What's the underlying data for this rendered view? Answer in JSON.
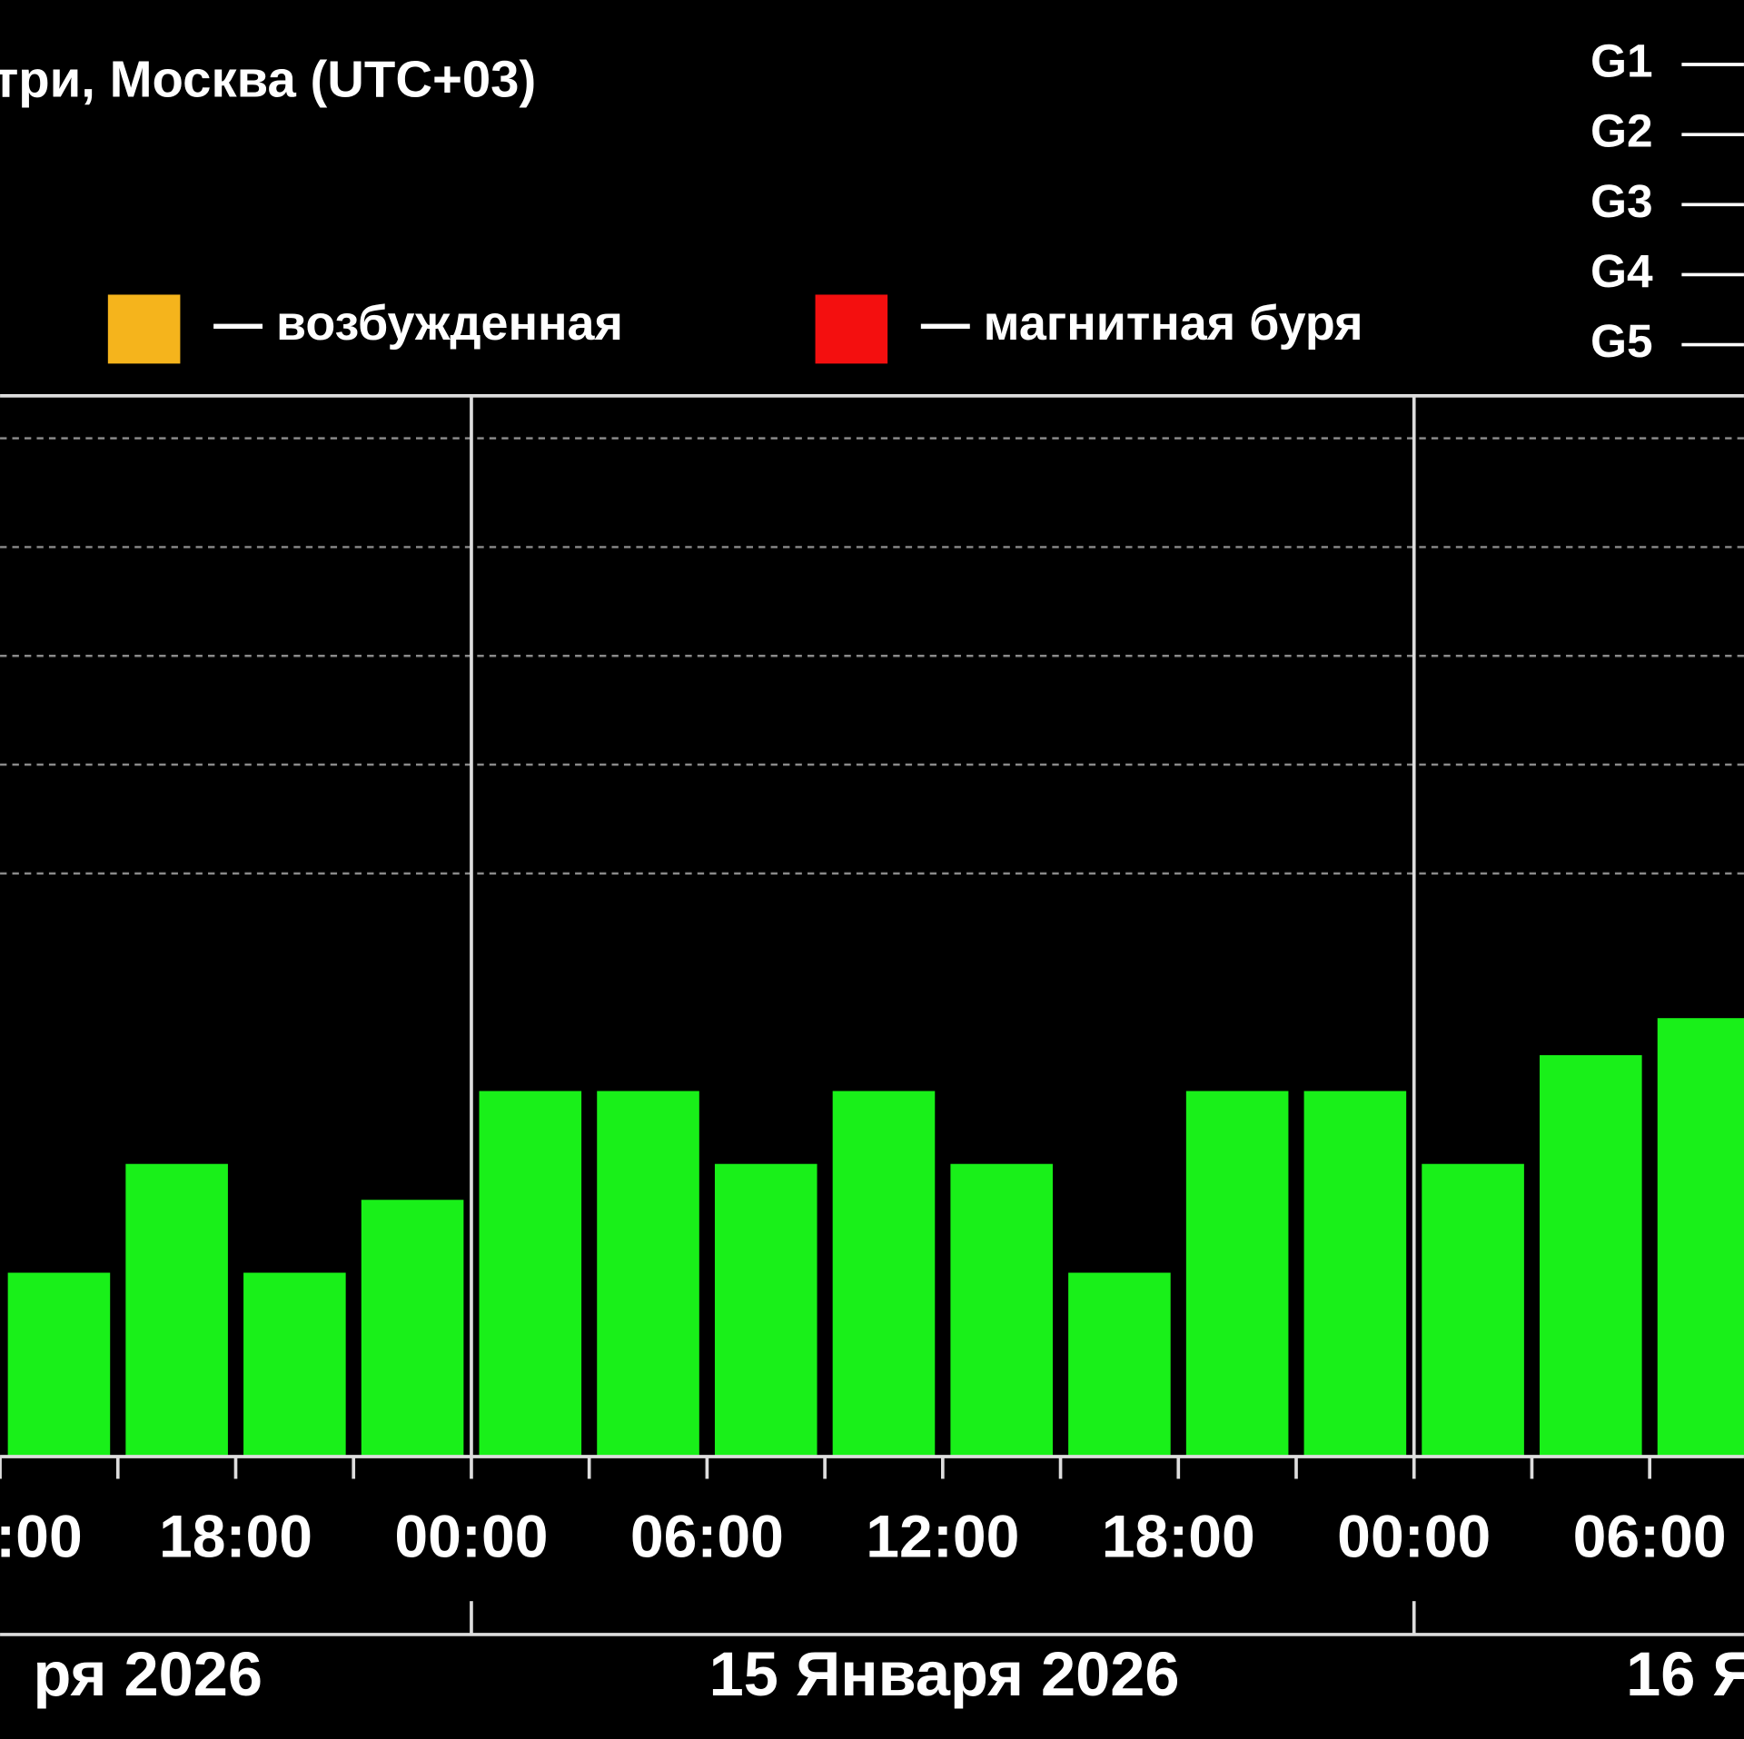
{
  "chart_data": {
    "type": "bar",
    "title": "три, Москва (UTC+03)",
    "legend": [
      {
        "label": "— возбужденная",
        "color": "#f5b41c"
      },
      {
        "label": "— магнитная буря",
        "color": "#f40f0f"
      }
    ],
    "g_scale": [
      "G1",
      "G2",
      "G3",
      "G4",
      "G5"
    ],
    "x": [
      12,
      15,
      18,
      21,
      24,
      27,
      30,
      33,
      36,
      39,
      42,
      45,
      48,
      51,
      54
    ],
    "values": [
      1.33,
      2.33,
      1.33,
      2,
      3,
      3,
      2.33,
      3,
      2.33,
      1.33,
      3,
      3,
      2.33,
      3.33,
      3.67
    ],
    "color": "#19f019",
    "xlim": [
      12,
      56.4
    ],
    "xticks": [
      {
        "value": 12,
        "label": ":00"
      },
      {
        "value": 18,
        "label": "18:00"
      },
      {
        "value": 24,
        "label": "00:00"
      },
      {
        "value": 30,
        "label": "06:00"
      },
      {
        "value": 36,
        "label": "12:00"
      },
      {
        "value": 42,
        "label": "18:00"
      },
      {
        "value": 48,
        "label": "00:00"
      },
      {
        "value": 54,
        "label": "06:00"
      }
    ],
    "xticks_minor": [
      15,
      21,
      27,
      33,
      39,
      45,
      51
    ],
    "day_separators": [
      24,
      48
    ],
    "day_labels": [
      "ря 2026",
      "15 Января 2026",
      "16 Я"
    ],
    "ylim": [
      -0.36,
      9.39
    ],
    "yticks": [
      5,
      6,
      7,
      8,
      9
    ],
    "grid": true
  }
}
